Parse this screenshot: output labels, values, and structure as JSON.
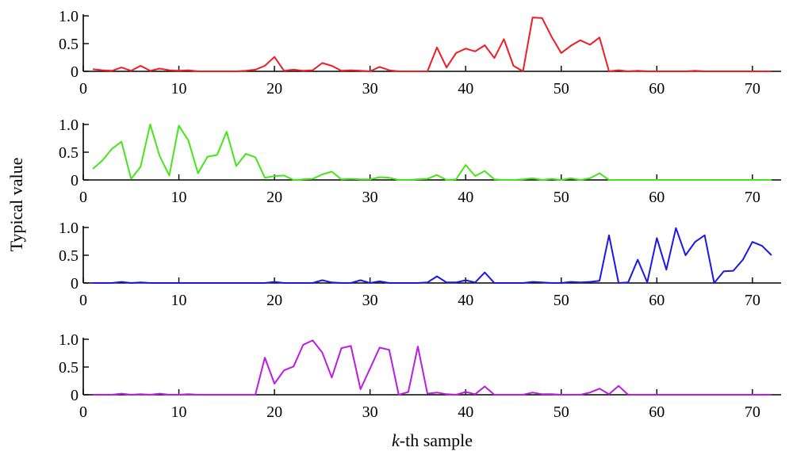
{
  "chart_data": [
    {
      "type": "line",
      "color": "#ee1c24",
      "xlim": [
        0,
        73
      ],
      "ylim": [
        0,
        1
      ],
      "xticks": [
        0,
        10,
        20,
        30,
        40,
        50,
        60,
        70
      ],
      "yticks": [
        0,
        0.5,
        1.0
      ],
      "ytick_labels": [
        "0",
        "0.5",
        "1.0"
      ],
      "x": [
        1,
        2,
        3,
        4,
        5,
        6,
        7,
        8,
        9,
        10,
        11,
        12,
        13,
        14,
        15,
        16,
        17,
        18,
        19,
        20,
        21,
        22,
        23,
        24,
        25,
        26,
        27,
        28,
        29,
        30,
        31,
        32,
        33,
        34,
        35,
        36,
        37,
        38,
        39,
        40,
        41,
        42,
        43,
        44,
        45,
        46,
        47,
        48,
        49,
        50,
        51,
        52,
        53,
        54,
        55,
        56,
        57,
        58,
        59,
        60,
        61,
        62,
        63,
        64,
        65,
        66,
        67,
        68,
        69,
        70,
        71,
        72
      ],
      "values": [
        0.04,
        0.02,
        0.01,
        0.07,
        0.01,
        0.1,
        0.01,
        0.05,
        0.02,
        0.01,
        0.02,
        0.0,
        0.0,
        0.0,
        0.0,
        0.0,
        0.01,
        0.03,
        0.1,
        0.26,
        0.01,
        0.03,
        0.01,
        0.02,
        0.15,
        0.1,
        0.01,
        0.02,
        0.01,
        0.0,
        0.08,
        0.02,
        0.0,
        0.0,
        0.0,
        0.0,
        0.43,
        0.07,
        0.33,
        0.41,
        0.36,
        0.47,
        0.24,
        0.58,
        0.1,
        0.0,
        0.97,
        0.96,
        0.62,
        0.33,
        0.46,
        0.56,
        0.48,
        0.61,
        0.0,
        0.02,
        0.0,
        0.01,
        0.0,
        0.0,
        0.0,
        0.0,
        0.0,
        0.01,
        0.0,
        0.0,
        0.0,
        0.0,
        0.0,
        0.0,
        0.0,
        0.0
      ]
    },
    {
      "type": "line",
      "color": "#44e619",
      "xlim": [
        0,
        73
      ],
      "ylim": [
        0,
        1
      ],
      "xticks": [
        0,
        10,
        20,
        30,
        40,
        50,
        60,
        70
      ],
      "yticks": [
        0,
        0.5,
        1.0
      ],
      "ytick_labels": [
        "0",
        "0.5",
        "1.0"
      ],
      "x": [
        1,
        2,
        3,
        4,
        5,
        6,
        7,
        8,
        9,
        10,
        11,
        12,
        13,
        14,
        15,
        16,
        17,
        18,
        19,
        20,
        21,
        22,
        23,
        24,
        25,
        26,
        27,
        28,
        29,
        30,
        31,
        32,
        33,
        34,
        35,
        36,
        37,
        38,
        39,
        40,
        41,
        42,
        43,
        44,
        45,
        46,
        47,
        48,
        49,
        50,
        51,
        52,
        53,
        54,
        55,
        56,
        57,
        58,
        59,
        60,
        61,
        62,
        63,
        64,
        65,
        66,
        67,
        68,
        69,
        70,
        71,
        72
      ],
      "values": [
        0.2,
        0.35,
        0.56,
        0.69,
        0.02,
        0.24,
        1.0,
        0.43,
        0.08,
        0.98,
        0.71,
        0.12,
        0.42,
        0.45,
        0.87,
        0.25,
        0.47,
        0.41,
        0.04,
        0.07,
        0.08,
        0.0,
        0.01,
        0.02,
        0.1,
        0.15,
        0.01,
        0.02,
        0.01,
        0.01,
        0.05,
        0.04,
        0.0,
        0.0,
        0.01,
        0.02,
        0.09,
        0.0,
        0.01,
        0.27,
        0.07,
        0.16,
        0.01,
        0.0,
        0.0,
        0.01,
        0.03,
        0.0,
        0.02,
        0.0,
        0.03,
        0.0,
        0.03,
        0.12,
        0.0,
        0.0,
        0.0,
        0.0,
        0.0,
        0.0,
        0.0,
        0.0,
        0.0,
        0.0,
        0.0,
        0.0,
        0.0,
        0.0,
        0.0,
        0.0,
        0.0,
        0.0
      ]
    },
    {
      "type": "line",
      "color": "#1b17e6",
      "xlim": [
        0,
        73
      ],
      "ylim": [
        0,
        1
      ],
      "xticks": [
        0,
        10,
        20,
        30,
        40,
        50,
        60,
        70
      ],
      "yticks": [
        0,
        0.5,
        1.0
      ],
      "ytick_labels": [
        "0",
        "0.5",
        "1.0"
      ],
      "x": [
        1,
        2,
        3,
        4,
        5,
        6,
        7,
        8,
        9,
        10,
        11,
        12,
        13,
        14,
        15,
        16,
        17,
        18,
        19,
        20,
        21,
        22,
        23,
        24,
        25,
        26,
        27,
        28,
        29,
        30,
        31,
        32,
        33,
        34,
        35,
        36,
        37,
        38,
        39,
        40,
        41,
        42,
        43,
        44,
        45,
        46,
        47,
        48,
        49,
        50,
        51,
        52,
        53,
        54,
        55,
        56,
        57,
        58,
        59,
        60,
        61,
        62,
        63,
        64,
        65,
        66,
        67,
        68,
        69,
        70,
        71,
        72
      ],
      "values": [
        0.0,
        0.0,
        0.0,
        0.02,
        0.0,
        0.01,
        0.0,
        0.0,
        0.0,
        0.0,
        0.0,
        0.0,
        0.0,
        0.0,
        0.0,
        0.0,
        0.0,
        0.0,
        0.0,
        0.02,
        0.0,
        0.0,
        0.0,
        0.0,
        0.05,
        0.01,
        0.0,
        0.0,
        0.05,
        0.0,
        0.03,
        0.0,
        0.0,
        0.0,
        0.0,
        0.01,
        0.12,
        0.01,
        0.01,
        0.05,
        0.01,
        0.19,
        0.0,
        0.0,
        0.0,
        0.0,
        0.02,
        0.01,
        0.0,
        0.0,
        0.02,
        0.01,
        0.02,
        0.04,
        0.86,
        0.0,
        0.01,
        0.42,
        0.01,
        0.81,
        0.24,
        0.99,
        0.5,
        0.74,
        0.86,
        0.0,
        0.21,
        0.22,
        0.42,
        0.74,
        0.67,
        0.5
      ]
    },
    {
      "type": "line",
      "color": "#bb1be6",
      "xlim": [
        0,
        73
      ],
      "ylim": [
        0,
        1
      ],
      "xticks": [
        0,
        10,
        20,
        30,
        40,
        50,
        60,
        70
      ],
      "xtick_labels": [
        "0",
        "10",
        "20",
        "30",
        "40",
        "50",
        "60",
        "70"
      ],
      "yticks": [
        0,
        0.5,
        1.0
      ],
      "ytick_labels": [
        "0",
        "0.5",
        "1.0"
      ],
      "x": [
        1,
        2,
        3,
        4,
        5,
        6,
        7,
        8,
        9,
        10,
        11,
        12,
        13,
        14,
        15,
        16,
        17,
        18,
        19,
        20,
        21,
        22,
        23,
        24,
        25,
        26,
        27,
        28,
        29,
        30,
        31,
        32,
        33,
        34,
        35,
        36,
        37,
        38,
        39,
        40,
        41,
        42,
        43,
        44,
        45,
        46,
        47,
        48,
        49,
        50,
        51,
        52,
        53,
        54,
        55,
        56,
        57,
        58,
        59,
        60,
        61,
        62,
        63,
        64,
        65,
        66,
        67,
        68,
        69,
        70,
        71,
        72
      ],
      "values": [
        0.0,
        0.0,
        0.0,
        0.02,
        0.0,
        0.01,
        0.0,
        0.02,
        0.0,
        0.0,
        0.01,
        0.0,
        0.0,
        0.0,
        0.0,
        0.0,
        0.0,
        0.0,
        0.67,
        0.2,
        0.44,
        0.51,
        0.9,
        0.98,
        0.76,
        0.31,
        0.84,
        0.88,
        0.1,
        0.47,
        0.85,
        0.81,
        0.0,
        0.05,
        0.87,
        0.02,
        0.04,
        0.01,
        0.0,
        0.05,
        0.01,
        0.15,
        0.0,
        0.0,
        0.0,
        0.0,
        0.04,
        0.01,
        0.01,
        0.0,
        0.0,
        0.0,
        0.04,
        0.11,
        0.01,
        0.16,
        0.0,
        0.0,
        0.0,
        0.0,
        0.0,
        0.0,
        0.0,
        0.0,
        0.0,
        0.0,
        0.0,
        0.0,
        0.0,
        0.0,
        0.0,
        0.0
      ]
    }
  ],
  "axes": {
    "ylabel": "Typical value",
    "xlabel_italic": "k",
    "xlabel_rest": "-th sample"
  }
}
